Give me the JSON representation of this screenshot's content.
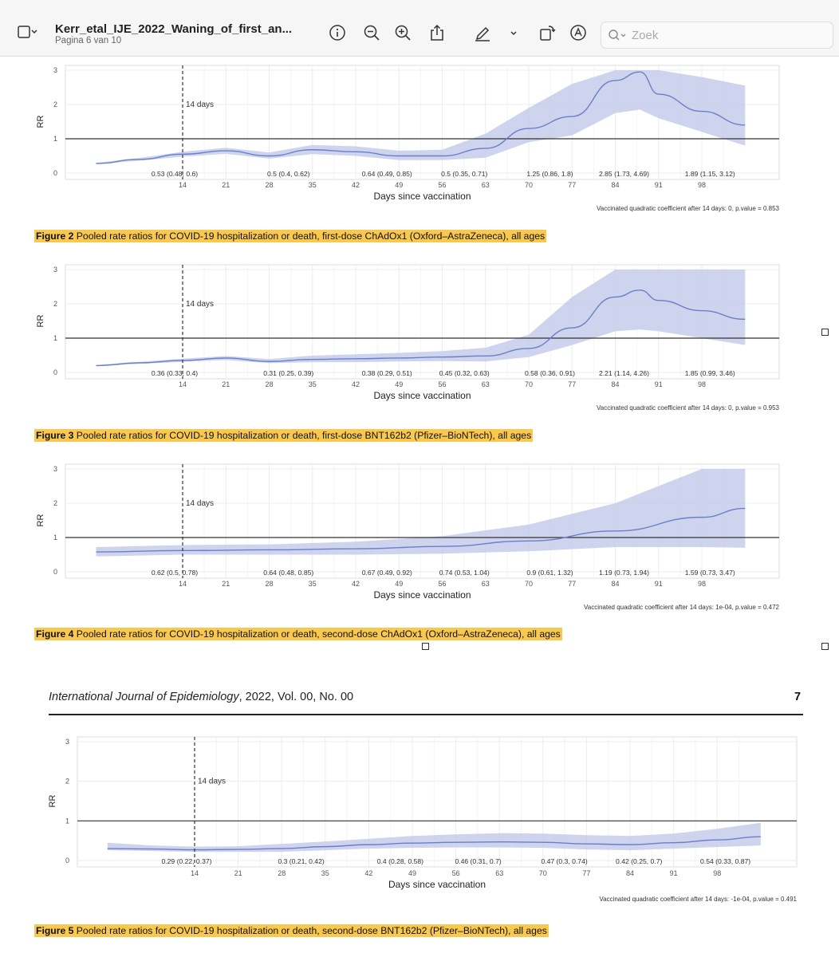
{
  "toolbar": {
    "title": "Kerr_etal_IJE_2022_Waning_of_first_an...",
    "page_indicator": "Pagina 6 van 10",
    "search_placeholder": "Zoek"
  },
  "page_header": {
    "journal": "International Journal of Epidemiology",
    "rest": ", 2022, Vol. 00, No. 00",
    "page_number": "7"
  },
  "chart_data": [
    {
      "type": "line",
      "caption_label": "Figure 2",
      "caption_text": " Pooled rate ratios for COVID-19 hospitalization or death, first-dose ChAdOx1 (Oxford–AstraZeneca), all ages",
      "xlabel": "Days since vaccination",
      "ylabel": "RR",
      "x_ticks": [
        14,
        21,
        28,
        35,
        42,
        49,
        56,
        63,
        70,
        77,
        84,
        91,
        98
      ],
      "y_ticks": [
        0,
        1,
        2,
        3
      ],
      "ylim": [
        0,
        3
      ],
      "reference_line": 1,
      "vline_label": "14 days",
      "footnote": "Vaccinated quadratic coefficient after 14 days: 0, p.value = 0.853",
      "x": [
        0,
        7,
        14,
        21,
        28,
        35,
        42,
        49,
        56,
        63,
        70,
        77,
        84,
        88,
        91,
        98,
        105
      ],
      "values": [
        0.28,
        0.4,
        0.55,
        0.65,
        0.5,
        0.68,
        0.62,
        0.5,
        0.5,
        0.72,
        1.3,
        1.65,
        2.7,
        2.95,
        2.3,
        1.8,
        1.4
      ],
      "lower": [
        0.26,
        0.36,
        0.48,
        0.56,
        0.42,
        0.55,
        0.5,
        0.38,
        0.38,
        0.45,
        0.9,
        1.1,
        1.75,
        1.85,
        1.6,
        1.2,
        0.8
      ],
      "upper": [
        0.3,
        0.44,
        0.62,
        0.74,
        0.6,
        0.82,
        0.78,
        0.65,
        0.68,
        1.15,
        1.9,
        2.6,
        3.0,
        3.0,
        3.0,
        2.8,
        2.55
      ],
      "interval_labels": [
        "0.53 (0.48, 0.6)",
        "0.5 (0.4, 0.62)",
        "0.64 (0.49, 0.85)",
        "0.5 (0.35, 0.71)",
        "1.25 (0.86, 1.8)",
        "2.85 (1.73, 4.69)",
        "1.89 (1.15, 3.12)"
      ]
    },
    {
      "type": "line",
      "caption_label": "Figure 3",
      "caption_text": " Pooled rate ratios for COVID-19 hospitalization or death, first-dose BNT162b2 (Pfizer–BioNTech), all ages",
      "xlabel": "Days since vaccination",
      "ylabel": "RR",
      "x_ticks": [
        14,
        21,
        28,
        35,
        42,
        49,
        56,
        63,
        70,
        77,
        84,
        91,
        98
      ],
      "y_ticks": [
        0,
        1,
        2,
        3
      ],
      "ylim": [
        0,
        3
      ],
      "reference_line": 1,
      "vline_label": "14 days",
      "footnote": "Vaccinated quadratic coefficient after 14 days: 0, p.value = 0.953",
      "x": [
        0,
        7,
        14,
        21,
        28,
        35,
        42,
        49,
        56,
        63,
        70,
        77,
        84,
        88,
        91,
        98,
        105
      ],
      "values": [
        0.2,
        0.28,
        0.35,
        0.42,
        0.32,
        0.38,
        0.4,
        0.42,
        0.45,
        0.48,
        0.7,
        1.3,
        2.2,
        2.4,
        2.1,
        1.8,
        1.55
      ],
      "lower": [
        0.18,
        0.25,
        0.31,
        0.36,
        0.27,
        0.3,
        0.3,
        0.32,
        0.33,
        0.32,
        0.45,
        0.8,
        1.2,
        1.25,
        1.2,
        1.0,
        0.8
      ],
      "upper": [
        0.22,
        0.31,
        0.4,
        0.48,
        0.39,
        0.49,
        0.53,
        0.57,
        0.62,
        0.72,
        1.1,
        2.2,
        3.0,
        3.0,
        3.0,
        3.0,
        3.0
      ],
      "interval_labels": [
        "0.36 (0.33, 0.4)",
        "0.31 (0.25, 0.39)",
        "0.38 (0.29, 0.51)",
        "0.45 (0.32, 0.63)",
        "0.58 (0.36, 0.91)",
        "2.21 (1.14, 4.26)",
        "1.85 (0.99, 3.46)"
      ]
    },
    {
      "type": "line",
      "caption_label": "Figure 4",
      "caption_text": " Pooled rate ratios for COVID-19 hospitalization or death, second-dose ChAdOx1 (Oxford–AstraZeneca), all ages",
      "xlabel": "Days since vaccination",
      "ylabel": "RR",
      "x_ticks": [
        14,
        21,
        28,
        35,
        42,
        49,
        56,
        63,
        70,
        77,
        84,
        91,
        98
      ],
      "y_ticks": [
        0,
        1,
        2,
        3
      ],
      "ylim": [
        0,
        3
      ],
      "reference_line": 1,
      "vline_label": "14 days",
      "footnote": "Vaccinated quadratic coefficient after 14 days: 1e-04, p.value = 0.472",
      "x": [
        0,
        14,
        28,
        42,
        56,
        70,
        84,
        98,
        105
      ],
      "values": [
        0.58,
        0.62,
        0.64,
        0.67,
        0.74,
        0.9,
        1.19,
        1.59,
        1.85
      ],
      "lower": [
        0.45,
        0.5,
        0.5,
        0.5,
        0.53,
        0.6,
        0.72,
        0.72,
        0.7
      ],
      "upper": [
        0.72,
        0.78,
        0.8,
        0.88,
        1.04,
        1.38,
        2.0,
        3.0,
        3.0
      ],
      "interval_labels": [
        "0.62 (0.5, 0.78)",
        "0.64 (0.48, 0.85)",
        "0.67 (0.49, 0.92)",
        "0.74 (0.53, 1.04)",
        "0.9 (0.61, 1.32)",
        "1.19 (0.73, 1.94)",
        "1.59 (0.73, 3.47)"
      ]
    },
    {
      "type": "line",
      "caption_label": "Figure 5",
      "caption_text": " Pooled rate ratios for COVID-19 hospitalization or death, second-dose BNT162b2 (Pfizer–BioNTech), all ages",
      "xlabel": "Days since vaccination",
      "ylabel": "RR",
      "x_ticks": [
        14,
        21,
        28,
        35,
        42,
        49,
        56,
        63,
        70,
        77,
        84,
        91,
        98
      ],
      "y_ticks": [
        0,
        1,
        2,
        3
      ],
      "ylim": [
        0,
        3
      ],
      "reference_line": 1,
      "vline_label": "14 days",
      "footnote": "Vaccinated quadratic coefficient after 14 days: -1e-04, p.value = 0.491",
      "x": [
        0,
        7,
        14,
        21,
        28,
        35,
        42,
        49,
        56,
        63,
        70,
        77,
        84,
        91,
        98,
        105
      ],
      "values": [
        0.3,
        0.29,
        0.27,
        0.28,
        0.3,
        0.35,
        0.4,
        0.44,
        0.46,
        0.47,
        0.46,
        0.42,
        0.4,
        0.45,
        0.52,
        0.6
      ],
      "lower": [
        0.26,
        0.24,
        0.22,
        0.22,
        0.22,
        0.26,
        0.3,
        0.32,
        0.33,
        0.33,
        0.32,
        0.28,
        0.26,
        0.3,
        0.34,
        0.38
      ],
      "upper": [
        0.45,
        0.38,
        0.35,
        0.36,
        0.42,
        0.48,
        0.55,
        0.62,
        0.66,
        0.69,
        0.68,
        0.64,
        0.62,
        0.68,
        0.8,
        0.95
      ],
      "interval_labels": [
        "0.29 (0.22, 0.37)",
        "0.3 (0.21, 0.42)",
        "0.4 (0.28, 0.58)",
        "0.46 (0.31, 0.7)",
        "0.47 (0.3, 0.74)",
        "0.42 (0.25, 0.7)",
        "0.54 (0.33, 0.87)"
      ]
    }
  ]
}
